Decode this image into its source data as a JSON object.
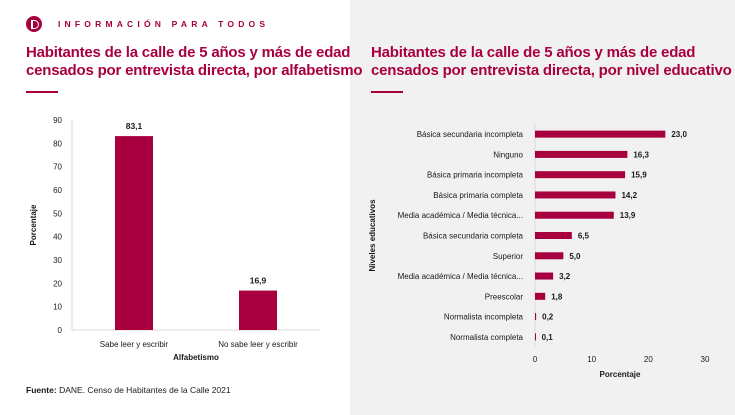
{
  "header": {
    "brand_text": "INFORMACIÓN PARA TODOS",
    "accent_color": "#a8003f",
    "logo_icon": "dane-logo-icon"
  },
  "left": {
    "title_line1": "Habitantes de la calle de 5 años y más de edad",
    "title_line2": "censados por entrevista directa, por alfabetismo"
  },
  "right": {
    "title_line1": "Habitantes de la calle de 5 años y más de edad",
    "title_line2": "censados por entrevista directa, por nivel educativo"
  },
  "footer": {
    "source_label": "Fuente:",
    "source_text": "DANE. Censo de Habitantes de la Calle 2021"
  },
  "chart_data": [
    {
      "type": "bar",
      "orientation": "vertical",
      "title": "Habitantes de la calle de 5 años y más de edad censados por entrevista directa, por alfabetismo",
      "categories": [
        "Sabe leer y escribir",
        "No sabe leer y escribir"
      ],
      "values": [
        83.1,
        16.9
      ],
      "value_labels": [
        "83,1",
        "16,9"
      ],
      "xlabel": "Alfabetismo",
      "ylabel": "Porcentaje",
      "ylim": [
        0,
        90
      ],
      "yticks": [
        0,
        10,
        20,
        30,
        40,
        50,
        60,
        70,
        80,
        90
      ],
      "grid": false,
      "bar_color": "#a8003f"
    },
    {
      "type": "bar",
      "orientation": "horizontal",
      "title": "Habitantes de la calle de 5 años y más de edad censados por entrevista directa, por nivel educativo",
      "categories": [
        "Básica secundaria incompleta",
        "Ninguno",
        "Básica primaria incompleta",
        "Básica primaria completa",
        "Media académica / Media técnica...",
        "Básica secundaria completa",
        "Superior",
        "Media académica / Media técnica...",
        "Preescolar",
        "Normalista incompleta",
        "Normalista completa"
      ],
      "values": [
        23.0,
        16.3,
        15.9,
        14.2,
        13.9,
        6.5,
        5.0,
        3.2,
        1.8,
        0.2,
        0.1
      ],
      "value_labels": [
        "23,0",
        "16,3",
        "15,9",
        "14,2",
        "13,9",
        "6,5",
        "5,0",
        "3,2",
        "1,8",
        "0,2",
        "0,1"
      ],
      "xlabel": "Porcentaje",
      "ylabel": "Niveles educativos",
      "xlim": [
        0,
        30
      ],
      "xticks": [
        0,
        10,
        20,
        30
      ],
      "grid": false,
      "bar_color": "#a8003f"
    }
  ]
}
